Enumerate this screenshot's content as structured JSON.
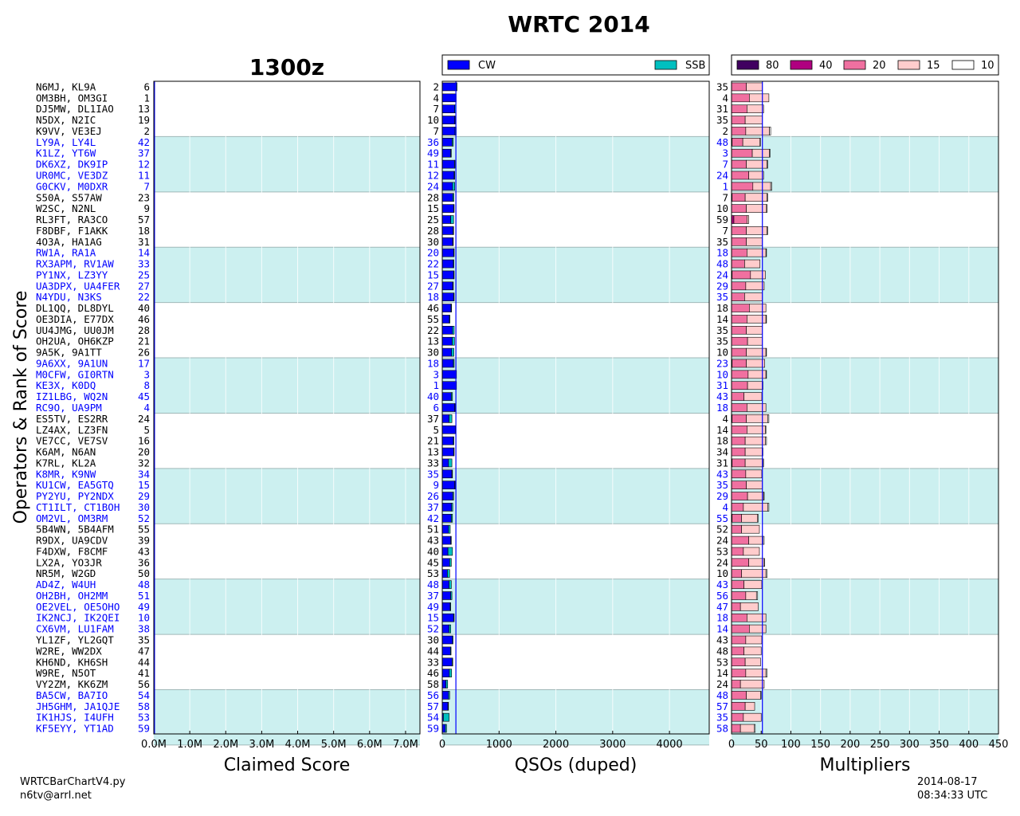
{
  "title": "WRTC 2014",
  "subtitle": "1300z",
  "footer": {
    "script": "WRTCBarChartV4.py",
    "email": "n6tv@arrl.net",
    "date": "2014-08-17",
    "time": "08:34:33 UTC"
  },
  "colors": {
    "band": "#ccf0f0",
    "cw": "#0000ff",
    "ssb": "#00c0c0",
    "highlight_text": "#0000ff",
    "ref_line": "#0000ff",
    "m80": "#400060",
    "m40": "#b00080",
    "m20": "#f070a0",
    "m15": "#ffcccc",
    "m10": "#ffffff"
  },
  "chart_data": {
    "type": "bar",
    "ylabel": "Operators & Rank of Score",
    "teams": [
      {
        "ops": "N6MJ, KL9A",
        "rank": 6,
        "score_m": 0.012,
        "qso": 2,
        "cw": 250,
        "ssb": 10,
        "qso_rank": 2,
        "mult_rank": 35,
        "m": [
          0,
          0,
          25,
          27,
          0
        ]
      },
      {
        "ops": "OM3BH, OM3GI",
        "rank": 1,
        "score_m": 0.017,
        "qso": 4,
        "cw": 235,
        "ssb": 10,
        "qso_rank": 4,
        "mult_rank": 4,
        "m": [
          0,
          0,
          30,
          33,
          0
        ]
      },
      {
        "ops": "DJ5MW, DL1IAO",
        "rank": 13,
        "score_m": 0.01,
        "qso": 7,
        "cw": 220,
        "ssb": 20,
        "qso_rank": 7,
        "mult_rank": 31,
        "m": [
          0,
          0,
          26,
          28,
          0
        ]
      },
      {
        "ops": "N5DX, N2IC",
        "rank": 19,
        "score_m": 0.008,
        "qso": 10,
        "cw": 220,
        "ssb": 10,
        "qso_rank": 10,
        "mult_rank": 35,
        "m": [
          0,
          0,
          23,
          29,
          0
        ]
      },
      {
        "ops": "K9VV, VE3EJ",
        "rank": 2,
        "score_m": 0.016,
        "qso": 7,
        "cw": 225,
        "ssb": 20,
        "qso_rank": 7,
        "mult_rank": 2,
        "m": [
          0,
          0,
          24,
          40,
          2
        ]
      },
      {
        "ops": "LY9A, LY4L",
        "rank": 42,
        "score_m": 0.004,
        "qso": 36,
        "cw": 175,
        "ssb": 20,
        "qso_rank": 36,
        "mult_rank": 48,
        "m": [
          0,
          1,
          18,
          29,
          1
        ]
      },
      {
        "ops": "K1LZ, YT6W",
        "rank": 37,
        "score_m": 0.005,
        "qso": 49,
        "cw": 150,
        "ssb": 10,
        "qso_rank": 49,
        "mult_rank": 3,
        "m": [
          0,
          0,
          35,
          29,
          1
        ]
      },
      {
        "ops": "DK6XZ, DK9IP",
        "rank": 12,
        "score_m": 0.01,
        "qso": 11,
        "cw": 215,
        "ssb": 10,
        "qso_rank": 11,
        "mult_rank": 7,
        "m": [
          0,
          0,
          25,
          35,
          1
        ]
      },
      {
        "ops": "UR0MC, VE3DZ",
        "rank": 11,
        "score_m": 0.011,
        "qso": 12,
        "cw": 210,
        "ssb": 10,
        "qso_rank": 12,
        "mult_rank": 24,
        "m": [
          0,
          0,
          29,
          25,
          0
        ]
      },
      {
        "ops": "G0CKV, M0DXR",
        "rank": 7,
        "score_m": 0.012,
        "qso": 24,
        "cw": 180,
        "ssb": 40,
        "qso_rank": 24,
        "mult_rank": 1,
        "m": [
          0,
          0,
          36,
          30,
          2
        ]
      },
      {
        "ops": "S50A, S57AW",
        "rank": 23,
        "score_m": 0.007,
        "qso": 28,
        "cw": 185,
        "ssb": 20,
        "qso_rank": 28,
        "mult_rank": 7,
        "m": [
          0,
          1,
          22,
          37,
          1
        ]
      },
      {
        "ops": "W2SC, N2NL",
        "rank": 9,
        "score_m": 0.011,
        "qso": 15,
        "cw": 200,
        "ssb": 10,
        "qso_rank": 15,
        "mult_rank": 10,
        "m": [
          0,
          0,
          25,
          34,
          1
        ]
      },
      {
        "ops": "RL3FT, RA3CO",
        "rank": 57,
        "score_m": 0.002,
        "qso": 25,
        "cw": 150,
        "ssb": 50,
        "qso_rank": 25,
        "mult_rank": 59,
        "m": [
          0,
          4,
          22,
          3,
          0
        ]
      },
      {
        "ops": "F8DBF, F1AKK",
        "rank": 18,
        "score_m": 0.008,
        "qso": 28,
        "cw": 190,
        "ssb": 10,
        "qso_rank": 28,
        "mult_rank": 7,
        "m": [
          0,
          0,
          25,
          35,
          1
        ]
      },
      {
        "ops": "4O3A, HA1AG",
        "rank": 31,
        "score_m": 0.006,
        "qso": 30,
        "cw": 185,
        "ssb": 10,
        "qso_rank": 30,
        "mult_rank": 35,
        "m": [
          0,
          0,
          25,
          27,
          0
        ]
      },
      {
        "ops": "RW1A, RA1A",
        "rank": 14,
        "score_m": 0.009,
        "qso": 20,
        "cw": 200,
        "ssb": 10,
        "qso_rank": 20,
        "mult_rank": 18,
        "m": [
          0,
          0,
          26,
          32,
          1
        ]
      },
      {
        "ops": "RX3APM, RV1AW",
        "rank": 33,
        "score_m": 0.006,
        "qso": 22,
        "cw": 195,
        "ssb": 10,
        "qso_rank": 22,
        "mult_rank": 48,
        "m": [
          0,
          0,
          22,
          26,
          0
        ]
      },
      {
        "ops": "PY1NX, LZ3YY",
        "rank": 25,
        "score_m": 0.007,
        "qso": 15,
        "cw": 200,
        "ssb": 10,
        "qso_rank": 15,
        "mult_rank": 24,
        "m": [
          0,
          1,
          31,
          25,
          0
        ]
      },
      {
        "ops": "UA3DPX, UA4FER",
        "rank": 27,
        "score_m": 0.007,
        "qso": 27,
        "cw": 185,
        "ssb": 10,
        "qso_rank": 27,
        "mult_rank": 29,
        "m": [
          0,
          0,
          24,
          31,
          0
        ]
      },
      {
        "ops": "N4YDU, N3KS",
        "rank": 22,
        "score_m": 0.007,
        "qso": 18,
        "cw": 200,
        "ssb": 10,
        "qso_rank": 18,
        "mult_rank": 35,
        "m": [
          0,
          0,
          22,
          30,
          0
        ]
      },
      {
        "ops": "DL1QQ, DL8DYL",
        "rank": 40,
        "score_m": 0.004,
        "qso": 46,
        "cw": 155,
        "ssb": 10,
        "qso_rank": 46,
        "mult_rank": 18,
        "m": [
          0,
          0,
          30,
          28,
          0
        ]
      },
      {
        "ops": "OE3DIA, E77DX",
        "rank": 46,
        "score_m": 0.004,
        "qso": 55,
        "cw": 125,
        "ssb": 10,
        "qso_rank": 55,
        "mult_rank": 14,
        "m": [
          0,
          0,
          26,
          32,
          1
        ]
      },
      {
        "ops": "UU4JMG, UU0JM",
        "rank": 28,
        "score_m": 0.006,
        "qso": 22,
        "cw": 180,
        "ssb": 30,
        "qso_rank": 22,
        "mult_rank": 35,
        "m": [
          0,
          0,
          25,
          27,
          0
        ]
      },
      {
        "ops": "OH2UA, OH6KZP",
        "rank": 21,
        "score_m": 0.008,
        "qso": 13,
        "cw": 175,
        "ssb": 40,
        "qso_rank": 13,
        "mult_rank": 35,
        "m": [
          0,
          0,
          27,
          25,
          0
        ]
      },
      {
        "ops": "9A5K, 9A1TT",
        "rank": 26,
        "score_m": 0.007,
        "qso": 30,
        "cw": 165,
        "ssb": 40,
        "qso_rank": 30,
        "mult_rank": 10,
        "m": [
          0,
          0,
          25,
          33,
          1
        ]
      },
      {
        "ops": "9A6XX, 9A1UN",
        "rank": 17,
        "score_m": 0.008,
        "qso": 18,
        "cw": 195,
        "ssb": 15,
        "qso_rank": 18,
        "mult_rank": 23,
        "m": [
          0,
          1,
          24,
          31,
          0
        ]
      },
      {
        "ops": "M0CFW, GI0RTN",
        "rank": 3,
        "score_m": 0.016,
        "qso": 3,
        "cw": 240,
        "ssb": 10,
        "qso_rank": 3,
        "mult_rank": 10,
        "m": [
          0,
          0,
          28,
          30,
          1
        ]
      },
      {
        "ops": "KE3X, K0DQ",
        "rank": 8,
        "score_m": 0.012,
        "qso": 1,
        "cw": 240,
        "ssb": 10,
        "qso_rank": 1,
        "mult_rank": 31,
        "m": [
          0,
          0,
          27,
          26,
          0
        ]
      },
      {
        "ops": "IZ1LBG, WQ2N",
        "rank": 45,
        "score_m": 0.004,
        "qso": 40,
        "cw": 160,
        "ssb": 20,
        "qso_rank": 40,
        "mult_rank": 43,
        "m": [
          0,
          0,
          21,
          30,
          0
        ]
      },
      {
        "ops": "RC9O, UA9PM",
        "rank": 4,
        "score_m": 0.015,
        "qso": 6,
        "cw": 220,
        "ssb": 10,
        "qso_rank": 6,
        "mult_rank": 18,
        "m": [
          0,
          0,
          26,
          32,
          0
        ]
      },
      {
        "ops": "ES5TV, ES2RR",
        "rank": 24,
        "score_m": 0.007,
        "qso": 37,
        "cw": 120,
        "ssb": 50,
        "qso_rank": 37,
        "mult_rank": 4,
        "m": [
          0,
          1,
          24,
          36,
          2
        ]
      },
      {
        "ops": "LZ4AX, LZ3FN",
        "rank": 5,
        "score_m": 0.014,
        "qso": 5,
        "cw": 230,
        "ssb": 10,
        "qso_rank": 5,
        "mult_rank": 14,
        "m": [
          0,
          0,
          26,
          31,
          1
        ]
      },
      {
        "ops": "VE7CC, VE7SV",
        "rank": 16,
        "score_m": 0.008,
        "qso": 21,
        "cw": 195,
        "ssb": 10,
        "qso_rank": 21,
        "mult_rank": 18,
        "m": [
          0,
          0,
          23,
          34,
          2
        ]
      },
      {
        "ops": "K6AM, N6AN",
        "rank": 20,
        "score_m": 0.008,
        "qso": 13,
        "cw": 200,
        "ssb": 10,
        "qso_rank": 13,
        "mult_rank": 34,
        "m": [
          0,
          0,
          23,
          29,
          1
        ]
      },
      {
        "ops": "K7RL, KL2A",
        "rank": 32,
        "score_m": 0.006,
        "qso": 33,
        "cw": 110,
        "ssb": 60,
        "qso_rank": 33,
        "mult_rank": 31,
        "m": [
          0,
          1,
          22,
          30,
          1
        ]
      },
      {
        "ops": "K8MR, K9NW",
        "rank": 34,
        "score_m": 0.005,
        "qso": 35,
        "cw": 170,
        "ssb": 10,
        "qso_rank": 35,
        "mult_rank": 43,
        "m": [
          0,
          0,
          24,
          27,
          0
        ]
      },
      {
        "ops": "KU1CW, EA5GTQ",
        "rank": 15,
        "score_m": 0.009,
        "qso": 9,
        "cw": 220,
        "ssb": 10,
        "qso_rank": 9,
        "mult_rank": 35,
        "m": [
          0,
          0,
          25,
          27,
          0
        ]
      },
      {
        "ops": "PY2YU, PY2NDX",
        "rank": 29,
        "score_m": 0.006,
        "qso": 26,
        "cw": 185,
        "ssb": 15,
        "qso_rank": 26,
        "mult_rank": 29,
        "m": [
          0,
          0,
          27,
          27,
          1
        ]
      },
      {
        "ops": "CT1ILT, CT1BOH",
        "rank": 30,
        "score_m": 0.006,
        "qso": 37,
        "cw": 165,
        "ssb": 20,
        "qso_rank": 37,
        "mult_rank": 4,
        "m": [
          0,
          0,
          20,
          41,
          2
        ]
      },
      {
        "ops": "OM2VL, OM3RM",
        "rank": 52,
        "score_m": 0.003,
        "qso": 42,
        "cw": 160,
        "ssb": 20,
        "qso_rank": 42,
        "mult_rank": 55,
        "m": [
          0,
          1,
          16,
          27,
          1
        ]
      },
      {
        "ops": "5B4WN, 5B4AFM",
        "rank": 55,
        "score_m": 0.003,
        "qso": 51,
        "cw": 110,
        "ssb": 30,
        "qso_rank": 51,
        "mult_rank": 52,
        "m": [
          0,
          0,
          17,
          30,
          0
        ]
      },
      {
        "ops": "R9DX, UA9CDV",
        "rank": 39,
        "score_m": 0.005,
        "qso": 43,
        "cw": 150,
        "ssb": 10,
        "qso_rank": 43,
        "mult_rank": 24,
        "m": [
          0,
          0,
          29,
          24,
          2
        ]
      },
      {
        "ops": "F4DXW, F8CMF",
        "rank": 43,
        "score_m": 0.004,
        "qso": 40,
        "cw": 100,
        "ssb": 80,
        "qso_rank": 40,
        "mult_rank": 53,
        "m": [
          0,
          0,
          20,
          27,
          0
        ]
      },
      {
        "ops": "LX2A, YO3JR",
        "rank": 36,
        "score_m": 0.005,
        "qso": 45,
        "cw": 130,
        "ssb": 30,
        "qso_rank": 45,
        "mult_rank": 24,
        "m": [
          0,
          0,
          29,
          26,
          1
        ]
      },
      {
        "ops": "NR5M, W2GD",
        "rank": 50,
        "score_m": 0.003,
        "qso": 53,
        "cw": 90,
        "ssb": 40,
        "qso_rank": 53,
        "mult_rank": 10,
        "m": [
          0,
          0,
          17,
          41,
          2
        ]
      },
      {
        "ops": "AD4Z, W4UH",
        "rank": 48,
        "score_m": 0.004,
        "qso": 48,
        "cw": 120,
        "ssb": 40,
        "qso_rank": 48,
        "mult_rank": 43,
        "m": [
          0,
          0,
          21,
          30,
          0
        ]
      },
      {
        "ops": "OH2BH, OH2MM",
        "rank": 51,
        "score_m": 0.003,
        "qso": 37,
        "cw": 150,
        "ssb": 20,
        "qso_rank": 37,
        "mult_rank": 56,
        "m": [
          0,
          0,
          24,
          18,
          2
        ]
      },
      {
        "ops": "OE2VEL, OE5OHO",
        "rank": 49,
        "score_m": 0.004,
        "qso": 49,
        "cw": 140,
        "ssb": 10,
        "qso_rank": 49,
        "mult_rank": 47,
        "m": [
          0,
          0,
          15,
          30,
          0
        ]
      },
      {
        "ops": "IK2NCJ, IK2QEI",
        "rank": 10,
        "score_m": 0.011,
        "qso": 15,
        "cw": 200,
        "ssb": 10,
        "qso_rank": 15,
        "mult_rank": 18,
        "m": [
          0,
          0,
          26,
          32,
          0
        ]
      },
      {
        "ops": "CX6VM, LU1FAM",
        "rank": 38,
        "score_m": 0.005,
        "qso": 52,
        "cw": 120,
        "ssb": 30,
        "qso_rank": 52,
        "mult_rank": 14,
        "m": [
          0,
          0,
          30,
          28,
          0
        ]
      },
      {
        "ops": "YL1ZF, YL2GQT",
        "rank": 35,
        "score_m": 0.005,
        "qso": 30,
        "cw": 180,
        "ssb": 10,
        "qso_rank": 30,
        "mult_rank": 43,
        "m": [
          0,
          0,
          24,
          27,
          0
        ]
      },
      {
        "ops": "W2RE, WW2DX",
        "rank": 47,
        "score_m": 0.004,
        "qso": 44,
        "cw": 145,
        "ssb": 10,
        "qso_rank": 44,
        "mult_rank": 48,
        "m": [
          0,
          0,
          21,
          29,
          0
        ]
      },
      {
        "ops": "KH6ND, KH6SH",
        "rank": 44,
        "score_m": 0.004,
        "qso": 33,
        "cw": 175,
        "ssb": 10,
        "qso_rank": 33,
        "mult_rank": 53,
        "m": [
          0,
          0,
          23,
          26,
          0
        ]
      },
      {
        "ops": "W9RE, N5OT",
        "rank": 41,
        "score_m": 0.005,
        "qso": 46,
        "cw": 125,
        "ssb": 40,
        "qso_rank": 46,
        "mult_rank": 14,
        "m": [
          0,
          0,
          24,
          34,
          2
        ]
      },
      {
        "ops": "VY2ZM, KK6ZM",
        "rank": 56,
        "score_m": 0.002,
        "qso": 58,
        "cw": 65,
        "ssb": 30,
        "qso_rank": 58,
        "mult_rank": 24,
        "m": [
          0,
          0,
          15,
          40,
          0
        ]
      },
      {
        "ops": "BA5CW, BA7IO",
        "rank": 54,
        "score_m": 0.003,
        "qso": 56,
        "cw": 110,
        "ssb": 20,
        "qso_rank": 56,
        "mult_rank": 48,
        "m": [
          0,
          0,
          25,
          24,
          1
        ]
      },
      {
        "ops": "JH5GHM, JA1QJE",
        "rank": 58,
        "score_m": 0.002,
        "qso": 57,
        "cw": 100,
        "ssb": 10,
        "qso_rank": 57,
        "mult_rank": 57,
        "m": [
          0,
          0,
          23,
          16,
          0
        ]
      },
      {
        "ops": "IK1HJS, I4UFH",
        "rank": 53,
        "score_m": 0.003,
        "qso": 54,
        "cw": 20,
        "ssb": 100,
        "qso_rank": 54,
        "mult_rank": 35,
        "m": [
          0,
          0,
          20,
          30,
          0
        ]
      },
      {
        "ops": "KF5EYY, YT1AD",
        "rank": 59,
        "score_m": 0.001,
        "qso": 59,
        "cw": 55,
        "ssb": 20,
        "qso_rank": 59,
        "mult_rank": 58,
        "m": [
          0,
          0,
          15,
          23,
          2
        ]
      }
    ],
    "highlight_groups": [
      [
        5,
        9
      ],
      [
        15,
        19
      ],
      [
        25,
        29
      ],
      [
        35,
        39
      ],
      [
        45,
        49
      ],
      [
        55,
        59
      ]
    ],
    "score_axis": {
      "label": "Claimed Score",
      "xlim": [
        0,
        7.4
      ],
      "ticks": [
        0,
        1,
        2,
        3,
        4,
        5,
        6,
        7
      ],
      "tick_labels": [
        "0.0M",
        "1.0M",
        "2.0M",
        "3.0M",
        "4.0M",
        "5.0M",
        "6.0M",
        "7.0M"
      ],
      "ref": 0.02
    },
    "qso_axis": {
      "label": "QSOs (duped)",
      "xlim": [
        0,
        4700
      ],
      "ticks": [
        0,
        1000,
        2000,
        3000,
        4000
      ],
      "tick_labels": [
        "0",
        "1000",
        "2000",
        "3000",
        "4000"
      ],
      "ref": 240,
      "legend": [
        "CW",
        "SSB"
      ]
    },
    "mult_axis": {
      "label": "Multipliers",
      "xlim": [
        0,
        450
      ],
      "ticks": [
        0,
        50,
        100,
        150,
        200,
        250,
        300,
        350,
        400,
        450
      ],
      "tick_labels": [
        "0",
        "50",
        "100",
        "150",
        "200",
        "250",
        "300",
        "350",
        "400",
        "450"
      ],
      "ref": 52,
      "legend": [
        "80",
        "40",
        "20",
        "15",
        "10"
      ]
    }
  }
}
